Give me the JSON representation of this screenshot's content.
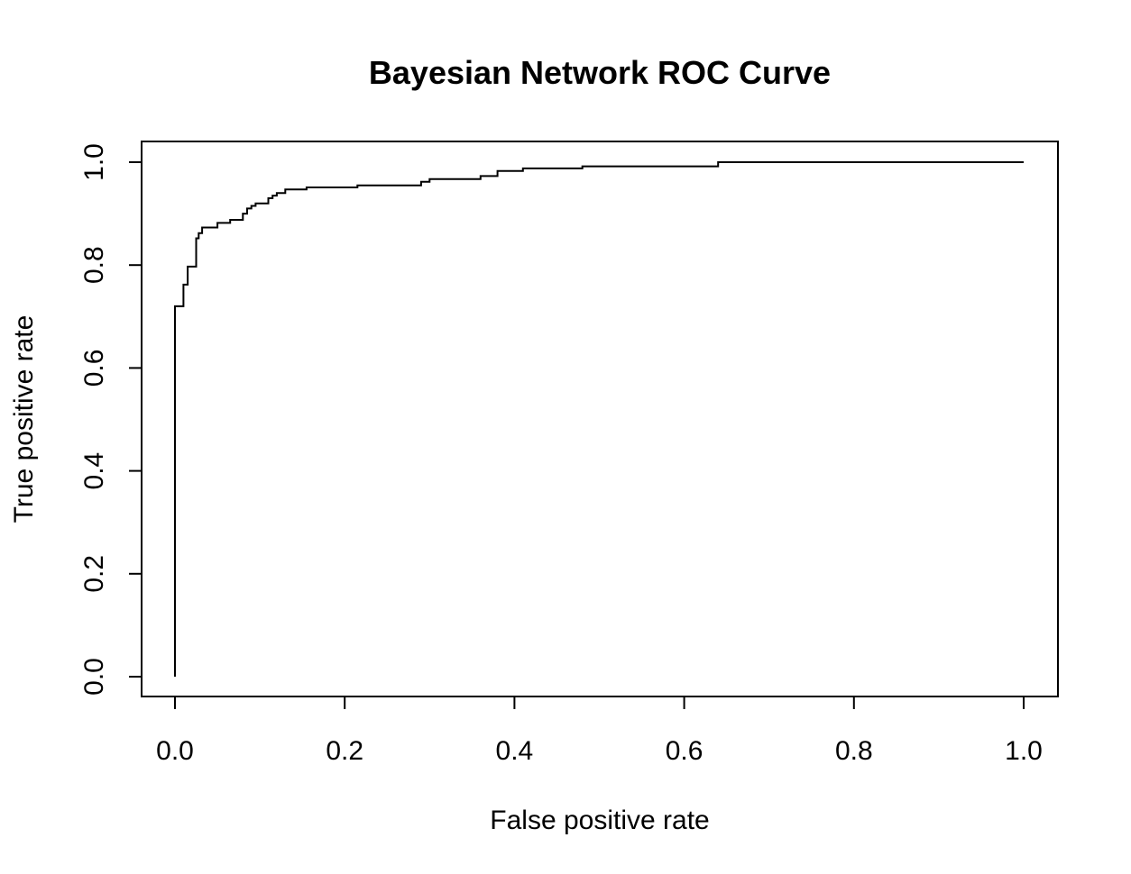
{
  "chart_data": {
    "type": "line",
    "title": "Bayesian Network ROC Curve",
    "xlabel": "False positive rate",
    "ylabel": "True positive rate",
    "xlim": [
      0,
      1
    ],
    "ylim": [
      0,
      1
    ],
    "xticks": [
      "0.0",
      "0.2",
      "0.4",
      "0.6",
      "0.8",
      "1.0"
    ],
    "yticks": [
      "0.0",
      "0.2",
      "0.4",
      "0.6",
      "0.8",
      "1.0"
    ],
    "grid": false,
    "line_color": "#000000",
    "series": [
      {
        "x": [
          0.0,
          0.0,
          0.01,
          0.01,
          0.015,
          0.015,
          0.025,
          0.025,
          0.028,
          0.028,
          0.032,
          0.032,
          0.05,
          0.05,
          0.065,
          0.065,
          0.08,
          0.08,
          0.085,
          0.085,
          0.09,
          0.09,
          0.095,
          0.095,
          0.11,
          0.11,
          0.115,
          0.115,
          0.12,
          0.12,
          0.13,
          0.13,
          0.155,
          0.155,
          0.215,
          0.215,
          0.29,
          0.29,
          0.3,
          0.3,
          0.36,
          0.36,
          0.38,
          0.38,
          0.41,
          0.41,
          0.48,
          0.48,
          0.64,
          0.64,
          1.0
        ],
        "y": [
          0.0,
          0.72,
          0.72,
          0.762,
          0.762,
          0.797,
          0.797,
          0.852,
          0.852,
          0.862,
          0.862,
          0.873,
          0.873,
          0.882,
          0.882,
          0.888,
          0.888,
          0.9,
          0.9,
          0.91,
          0.91,
          0.915,
          0.915,
          0.92,
          0.92,
          0.93,
          0.93,
          0.935,
          0.935,
          0.94,
          0.94,
          0.947,
          0.947,
          0.951,
          0.951,
          0.955,
          0.955,
          0.962,
          0.962,
          0.967,
          0.967,
          0.973,
          0.973,
          0.983,
          0.983,
          0.988,
          0.988,
          0.992,
          0.992,
          1.0,
          1.0
        ]
      }
    ]
  }
}
